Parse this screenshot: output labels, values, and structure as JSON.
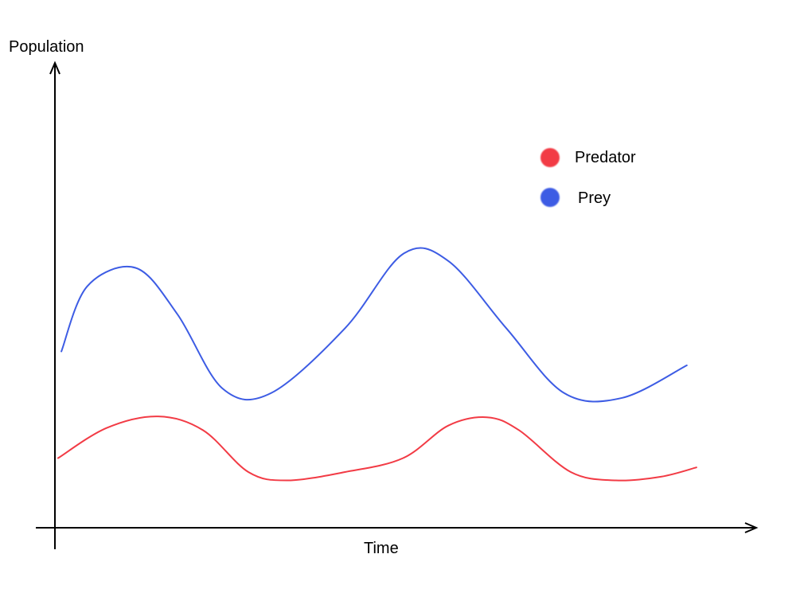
{
  "chart_data": {
    "type": "line",
    "title": "",
    "xlabel": "Time",
    "ylabel": "Population",
    "x_ticks_shown": false,
    "y_ticks_shown": false,
    "grid": false,
    "legend_position": "top-right",
    "xlim": [
      0,
      10
    ],
    "ylim": [
      0,
      10
    ],
    "series": [
      {
        "name": "Predator",
        "color": "#f23b45",
        "x": [
          0.05,
          0.8,
          1.6,
          2.3,
          3.0,
          3.6,
          4.5,
          5.4,
          6.1,
          6.7,
          7.2,
          8.0,
          8.7,
          9.4,
          9.95
        ],
        "y": [
          1.5,
          2.15,
          2.4,
          2.1,
          1.2,
          1.02,
          1.2,
          1.5,
          2.2,
          2.38,
          2.1,
          1.2,
          1.02,
          1.1,
          1.3
        ]
      },
      {
        "name": "Prey",
        "color": "#3d5ce4",
        "x": [
          0.1,
          0.5,
          1.25,
          1.9,
          2.6,
          3.35,
          4.5,
          5.4,
          6.1,
          7.0,
          7.9,
          8.8,
          9.8
        ],
        "y": [
          3.8,
          5.2,
          5.6,
          4.6,
          3.0,
          2.9,
          4.3,
          5.9,
          5.75,
          4.3,
          2.9,
          2.8,
          3.5
        ]
      }
    ]
  }
}
